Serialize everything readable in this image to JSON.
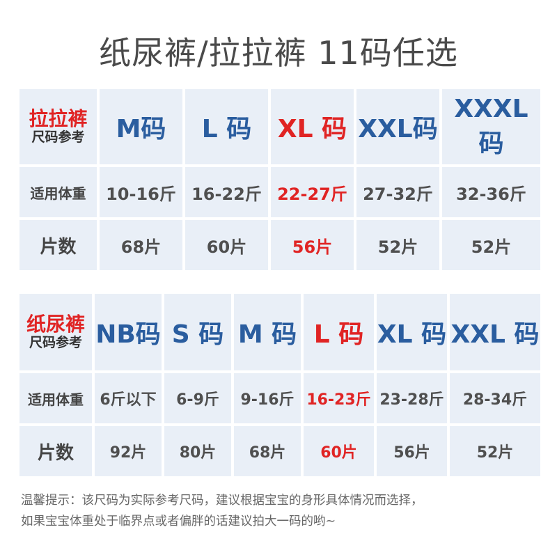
{
  "title": "纸尿裤/拉拉裤 11码任选",
  "table1": {
    "corner_line1": "拉拉裤",
    "corner_line2": "尺码参考",
    "sizes": [
      "M码",
      "L 码",
      "XL 码",
      "XXL码",
      "XXXL码"
    ],
    "highlight_index": 2,
    "weight_label": "适用体重",
    "weights": [
      "10-16斤",
      "16-22斤",
      "22-27斤",
      "27-32斤",
      "32-36斤"
    ],
    "count_label": "片数",
    "counts": [
      "68片",
      "60片",
      "56片",
      "52片",
      "52片"
    ]
  },
  "table2": {
    "corner_line1": "纸尿裤",
    "corner_line2": "尺码参考",
    "sizes": [
      "NB码",
      "S 码",
      "M 码",
      "L 码",
      "XL 码",
      "XXL 码"
    ],
    "highlight_index": 3,
    "weight_label": "适用体重",
    "weights": [
      "6斤以下",
      "6-9斤",
      "9-16斤",
      "16-23斤",
      "23-28斤",
      "28-34斤"
    ],
    "count_label": "片数",
    "counts": [
      "92片",
      "80片",
      "68片",
      "60片",
      "56片",
      "52片"
    ]
  },
  "note_line1": "温馨提示：该尺码为实际参考尺码，建议根据宝宝的身形具体情况而选择，",
  "note_line2": "如果宝宝体重处于临界点或者偏胖的话建议拍大一码的哟~",
  "colors": {
    "accent_blue": "#2a5d9f",
    "highlight_red": "#e02424",
    "cell_bg": "#e9eff7"
  }
}
